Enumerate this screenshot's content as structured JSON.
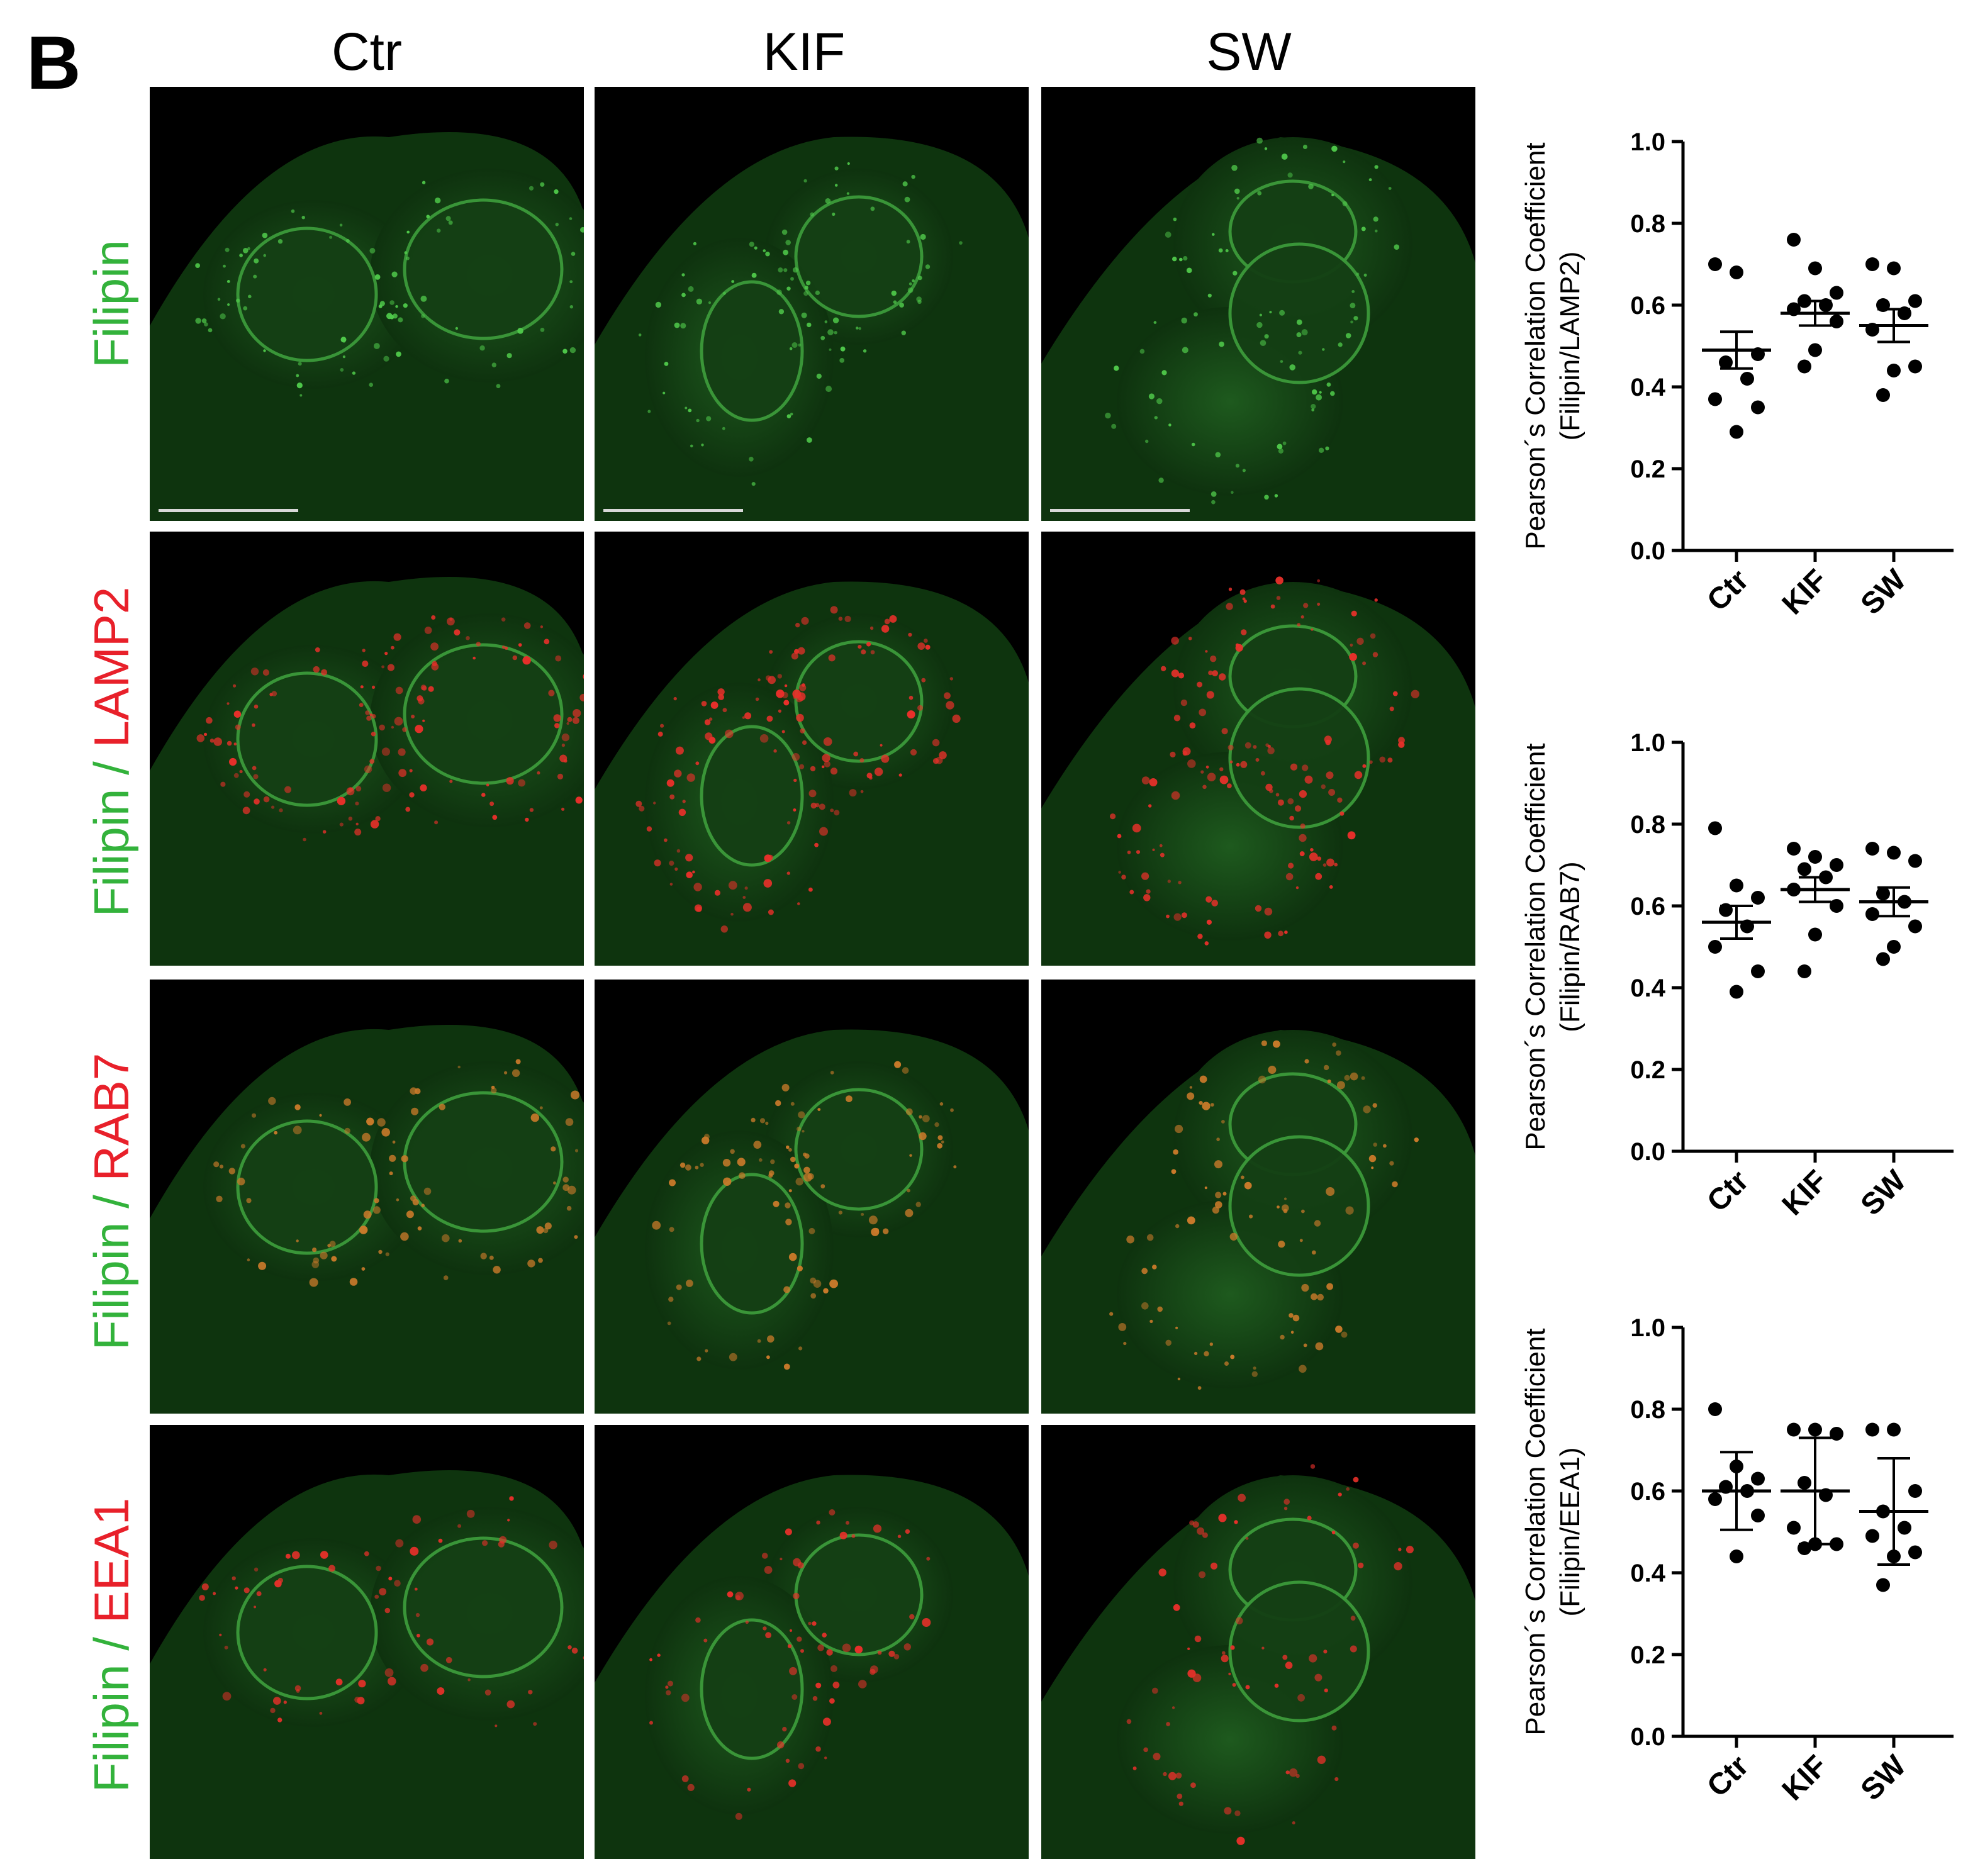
{
  "panel_letter": "B",
  "columns": [
    "Ctr",
    "KIF",
    "SW"
  ],
  "rows": [
    {
      "green": "Filipin",
      "sep": "",
      "red": ""
    },
    {
      "green": "Filipin",
      "sep": " / ",
      "red": "LAMP2"
    },
    {
      "green": "Filipin",
      "sep": " / ",
      "red": "RAB7"
    },
    {
      "green": "Filipin",
      "sep": " / ",
      "red": "EEA1"
    }
  ],
  "colors": {
    "green": "#33b23b",
    "red": "#e8202a"
  },
  "chart_data": [
    {
      "type": "scatter",
      "categories": [
        "Ctr",
        "KIF",
        "SW"
      ],
      "ylabel_line1": "Pearson´s Correlation Coefficient",
      "ylabel_line2": "(Filipin/LAMP2)",
      "ylim": [
        0.0,
        1.0
      ],
      "yticks": [
        "0.0",
        "0.2",
        "0.4",
        "0.6",
        "0.8",
        "1.0"
      ],
      "error_bars": "SEM",
      "series": [
        {
          "category": "Ctr",
          "points": [
            0.7,
            0.68,
            0.48,
            0.46,
            0.42,
            0.37,
            0.35,
            0.29
          ],
          "mean": 0.49,
          "err": 0.045
        },
        {
          "category": "KIF",
          "points": [
            0.76,
            0.69,
            0.63,
            0.61,
            0.6,
            0.59,
            0.56,
            0.49,
            0.45
          ],
          "mean": 0.58,
          "err": 0.03
        },
        {
          "category": "SW",
          "points": [
            0.7,
            0.69,
            0.61,
            0.6,
            0.58,
            0.54,
            0.45,
            0.44,
            0.38
          ],
          "mean": 0.55,
          "err": 0.04
        }
      ]
    },
    {
      "type": "scatter",
      "categories": [
        "Ctr",
        "KIF",
        "SW"
      ],
      "ylabel_line1": "Pearson´s Correlation Coefficient",
      "ylabel_line2": "(Filipin/RAB7)",
      "ylim": [
        0.0,
        1.0
      ],
      "yticks": [
        "0.0",
        "0.2",
        "0.4",
        "0.6",
        "0.8",
        "1.0"
      ],
      "error_bars": "SEM",
      "series": [
        {
          "category": "Ctr",
          "points": [
            0.79,
            0.65,
            0.62,
            0.59,
            0.55,
            0.5,
            0.44,
            0.39
          ],
          "mean": 0.56,
          "err": 0.04
        },
        {
          "category": "KIF",
          "points": [
            0.74,
            0.72,
            0.7,
            0.69,
            0.67,
            0.64,
            0.6,
            0.53,
            0.44
          ],
          "mean": 0.64,
          "err": 0.03
        },
        {
          "category": "SW",
          "points": [
            0.74,
            0.73,
            0.71,
            0.63,
            0.61,
            0.58,
            0.55,
            0.5,
            0.47
          ],
          "mean": 0.61,
          "err": 0.035
        }
      ]
    },
    {
      "type": "scatter",
      "categories": [
        "Ctr",
        "KIF",
        "SW"
      ],
      "ylabel_line1": "Pearson´s Correlation Coefficient",
      "ylabel_line2": "(Filipin/EEA1)",
      "ylim": [
        0.0,
        1.0
      ],
      "yticks": [
        "0.0",
        "0.2",
        "0.4",
        "0.6",
        "0.8",
        "1.0"
      ],
      "error_bars": "SD",
      "series": [
        {
          "category": "Ctr",
          "points": [
            0.8,
            0.66,
            0.63,
            0.61,
            0.6,
            0.58,
            0.54,
            0.44
          ],
          "mean": 0.6,
          "err": 0.095
        },
        {
          "category": "KIF",
          "points": [
            0.75,
            0.75,
            0.74,
            0.62,
            0.59,
            0.51,
            0.47,
            0.47,
            0.46
          ],
          "mean": 0.6,
          "err": 0.13
        },
        {
          "category": "SW",
          "points": [
            0.75,
            0.75,
            0.6,
            0.55,
            0.51,
            0.49,
            0.45,
            0.44,
            0.37
          ],
          "mean": 0.55,
          "err": 0.13
        }
      ]
    }
  ]
}
